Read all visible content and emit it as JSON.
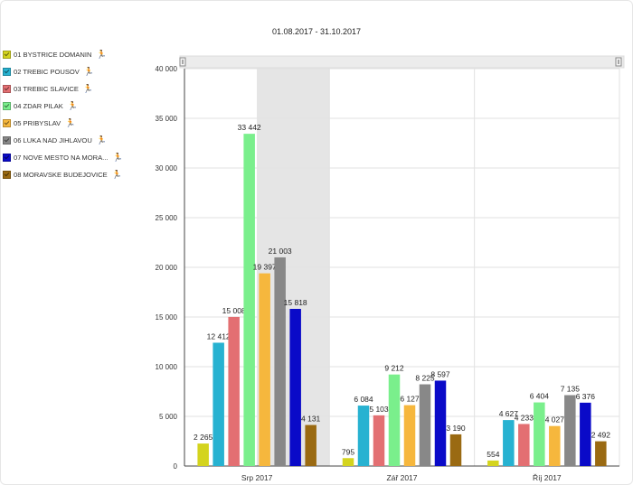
{
  "header": {
    "date_range": "01.08.2017 - 31.10.2017"
  },
  "legend_icon": "running-figure-icon",
  "chart_data": {
    "type": "bar",
    "categories": [
      "Srp 2017",
      "Zář 2017",
      "Říj 2017"
    ],
    "ylim": [
      0,
      40000
    ],
    "yticks": [
      "0",
      "5 000",
      "10 000",
      "15 000",
      "20 000",
      "25 000",
      "30 000",
      "35 000",
      "40 000"
    ],
    "grid": true,
    "legend_position": "left",
    "highlighted_category": "Srp 2017",
    "series": [
      {
        "name": "01 BYSTRICE DOMANIN",
        "color": "#d4d41e",
        "values": [
          2265,
          795,
          554
        ],
        "labels": [
          "2 265",
          "795",
          "554"
        ]
      },
      {
        "name": "02 TREBIC POUSOV",
        "color": "#27b2d1",
        "values": [
          12412,
          6084,
          4627
        ],
        "labels": [
          "12 412",
          "6 084",
          "4 627"
        ]
      },
      {
        "name": "03 TREBIC SLAVICE",
        "color": "#e36f72",
        "values": [
          15008,
          5103,
          4233
        ],
        "labels": [
          "15 008",
          "5 103",
          "4 233"
        ]
      },
      {
        "name": "04 ZDAR PILAK",
        "color": "#7aef8c",
        "values": [
          33442,
          9212,
          6404
        ],
        "labels": [
          "33 442",
          "9 212",
          "6 404"
        ]
      },
      {
        "name": "05 PRIBYSLAV",
        "color": "#f6b73d",
        "values": [
          19397,
          6127,
          4027
        ],
        "labels": [
          "19 397",
          "6 127",
          "4 027"
        ]
      },
      {
        "name": "06 LUKA NAD JIHLAVOU",
        "color": "#888888",
        "values": [
          21003,
          8225,
          7135
        ],
        "labels": [
          "21 003",
          "8 225",
          "7 135"
        ]
      },
      {
        "name": "07 NOVE MESTO NA MORA...",
        "color": "#0a0ac8",
        "values": [
          15818,
          8597,
          6376
        ],
        "labels": [
          "15 818",
          "8 597",
          "6 376"
        ]
      },
      {
        "name": "08 MORAVSKE BUDEJOVICE",
        "color": "#9a6a12",
        "values": [
          4131,
          3190,
          2492
        ],
        "labels": [
          "4 131",
          "3 190",
          "2 492"
        ]
      }
    ]
  }
}
